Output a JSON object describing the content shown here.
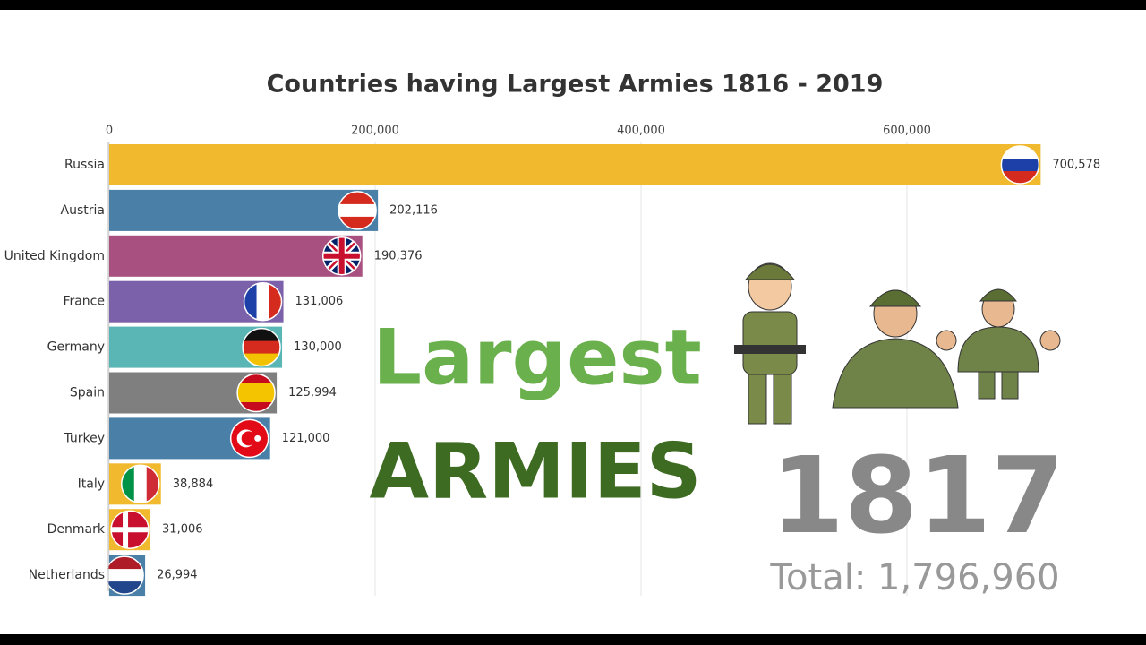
{
  "chart_data": {
    "type": "bar",
    "orientation": "horizontal",
    "title": "Countries having Largest Armies 1816 - 2019",
    "categories": [
      "Russia",
      "Austria",
      "United Kingdom",
      "France",
      "Germany",
      "Spain",
      "Turkey",
      "Italy",
      "Denmark",
      "Netherlands"
    ],
    "values": [
      700578,
      202116,
      190376,
      131006,
      130000,
      125994,
      121000,
      38884,
      31006,
      26994
    ],
    "value_labels": [
      "700,578",
      "202,116",
      "190,376",
      "131,006",
      "130,000",
      "125,994",
      "121,000",
      "38,884",
      "31,006",
      "26,994"
    ],
    "colors": [
      "#f0b92e",
      "#4a80a8",
      "#a8507f",
      "#7b60aa",
      "#5ab5b5",
      "#7f7f7f",
      "#4a80a8",
      "#f0b92e",
      "#f0b92e",
      "#4a80a8"
    ],
    "xlim": [
      0,
      700000
    ],
    "xticks": [
      0,
      {
        "value": 200000,
        "label": "200,000"
      },
      {
        "value": 400000,
        "label": "400,000"
      },
      {
        "value": 600000,
        "label": "600,000"
      }
    ],
    "grid": true,
    "year": "1817",
    "total": "Total: 1,796,960",
    "overlay_title": [
      "Largest",
      "ARMIES"
    ]
  }
}
